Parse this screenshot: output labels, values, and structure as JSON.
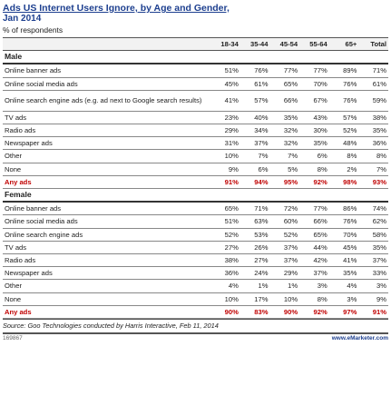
{
  "header": {
    "title": "Ads US Internet Users Ignore, by Age and Gender,",
    "date": "Jan 2014",
    "subtitle": "% of respondents"
  },
  "table": {
    "columns": [
      "18-34",
      "35-44",
      "45-54",
      "55-64",
      "65+",
      "Total"
    ],
    "sections": [
      {
        "label": "Male",
        "rows": [
          {
            "label": "Online banner ads",
            "values": [
              "51%",
              "76%",
              "77%",
              "77%",
              "89%",
              "71%"
            ]
          },
          {
            "label": "Online social media ads",
            "values": [
              "45%",
              "61%",
              "65%",
              "70%",
              "76%",
              "61%"
            ]
          },
          {
            "label": "Online search engine ads (e.g. ad next to Google search results)",
            "values": [
              "41%",
              "57%",
              "66%",
              "67%",
              "76%",
              "59%"
            ]
          },
          {
            "label": "TV ads",
            "values": [
              "23%",
              "40%",
              "35%",
              "43%",
              "57%",
              "38%"
            ]
          },
          {
            "label": "Radio ads",
            "values": [
              "29%",
              "34%",
              "32%",
              "30%",
              "52%",
              "35%"
            ]
          },
          {
            "label": "Newspaper ads",
            "values": [
              "31%",
              "37%",
              "32%",
              "35%",
              "48%",
              "36%"
            ]
          },
          {
            "label": "Other",
            "values": [
              "10%",
              "7%",
              "7%",
              "6%",
              "8%",
              "8%"
            ]
          },
          {
            "label": "None",
            "values": [
              "9%",
              "6%",
              "5%",
              "8%",
              "2%",
              "7%"
            ]
          },
          {
            "label": "Any ads",
            "values": [
              "91%",
              "94%",
              "95%",
              "92%",
              "98%",
              "93%"
            ]
          }
        ]
      },
      {
        "label": "Female",
        "rows": [
          {
            "label": "Online banner ads",
            "values": [
              "65%",
              "71%",
              "72%",
              "77%",
              "86%",
              "74%"
            ]
          },
          {
            "label": "Online social media ads",
            "values": [
              "51%",
              "63%",
              "60%",
              "66%",
              "76%",
              "62%"
            ]
          },
          {
            "label": "Online search engine ads",
            "values": [
              "52%",
              "53%",
              "52%",
              "65%",
              "70%",
              "58%"
            ]
          },
          {
            "label": "TV ads",
            "values": [
              "27%",
              "26%",
              "37%",
              "44%",
              "45%",
              "35%"
            ]
          },
          {
            "label": "Radio ads",
            "values": [
              "38%",
              "27%",
              "37%",
              "42%",
              "41%",
              "37%"
            ]
          },
          {
            "label": "Newspaper ads",
            "values": [
              "36%",
              "24%",
              "29%",
              "37%",
              "35%",
              "33%"
            ]
          },
          {
            "label": "Other",
            "values": [
              "4%",
              "1%",
              "1%",
              "3%",
              "4%",
              "3%"
            ]
          },
          {
            "label": "None",
            "values": [
              "10%",
              "17%",
              "10%",
              "8%",
              "3%",
              "9%"
            ]
          },
          {
            "label": "Any ads",
            "values": [
              "90%",
              "83%",
              "90%",
              "92%",
              "97%",
              "91%"
            ]
          }
        ]
      }
    ]
  },
  "footer": {
    "source": "Source: Goo Technologies conducted by Harris Interactive, Feb 11, 2014",
    "id": "169867",
    "site": "www.eMarketer.com"
  }
}
